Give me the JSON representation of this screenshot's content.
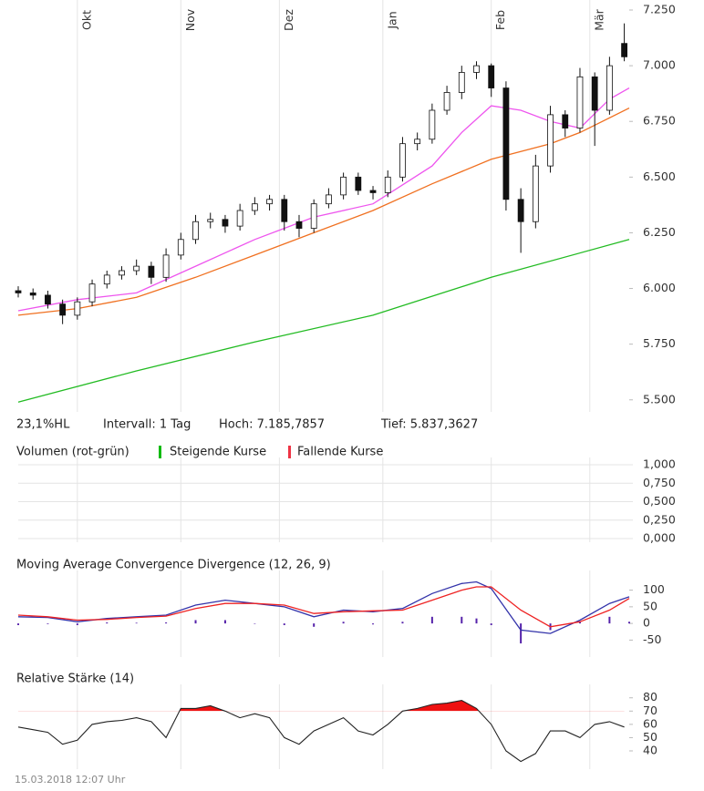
{
  "chart_data": [
    {
      "type": "candlestick",
      "x": [
        0,
        3,
        6,
        9,
        12,
        15,
        18,
        21,
        24,
        27,
        30,
        33,
        36,
        39,
        42,
        45,
        48,
        51,
        54,
        57,
        60,
        63,
        66,
        69,
        72,
        75,
        78,
        81,
        84,
        87,
        90,
        93,
        96,
        99,
        102,
        105,
        108,
        111,
        114,
        117,
        120,
        123
      ],
      "open": [
        5.99,
        5.98,
        5.97,
        5.93,
        5.88,
        5.94,
        6.02,
        6.06,
        6.08,
        6.1,
        6.05,
        6.15,
        6.22,
        6.3,
        6.31,
        6.28,
        6.35,
        6.38,
        6.4,
        6.3,
        6.27,
        6.38,
        6.42,
        6.5,
        6.44,
        6.43,
        6.5,
        6.65,
        6.67,
        6.8,
        6.88,
        6.97,
        7.0,
        6.9,
        6.4,
        6.3,
        6.55,
        6.78,
        6.72,
        6.95,
        6.8,
        7.1
      ],
      "high": [
        6.01,
        6.0,
        5.99,
        5.95,
        5.96,
        6.04,
        6.08,
        6.1,
        6.13,
        6.12,
        6.18,
        6.25,
        6.33,
        6.34,
        6.33,
        6.38,
        6.41,
        6.42,
        6.42,
        6.33,
        6.4,
        6.45,
        6.52,
        6.52,
        6.46,
        6.53,
        6.68,
        6.7,
        6.83,
        6.91,
        7.0,
        7.02,
        7.01,
        6.93,
        6.45,
        6.6,
        6.82,
        6.8,
        6.99,
        6.97,
        7.04,
        7.19
      ],
      "low": [
        5.96,
        5.95,
        5.91,
        5.84,
        5.86,
        5.92,
        6.0,
        6.04,
        6.06,
        6.02,
        6.03,
        6.13,
        6.2,
        6.27,
        6.25,
        6.26,
        6.33,
        6.35,
        6.26,
        6.23,
        6.25,
        6.36,
        6.4,
        6.42,
        6.4,
        6.41,
        6.48,
        6.62,
        6.65,
        6.78,
        6.85,
        6.94,
        6.86,
        6.35,
        6.16,
        6.27,
        6.52,
        6.68,
        6.7,
        6.64,
        6.78,
        7.02
      ],
      "close": [
        5.98,
        5.97,
        5.93,
        5.88,
        5.94,
        6.02,
        6.06,
        6.08,
        6.1,
        6.05,
        6.15,
        6.22,
        6.3,
        6.31,
        6.28,
        6.35,
        6.38,
        6.4,
        6.3,
        6.27,
        6.38,
        6.42,
        6.5,
        6.44,
        6.43,
        6.5,
        6.65,
        6.67,
        6.8,
        6.88,
        6.97,
        7.0,
        6.9,
        6.4,
        6.3,
        6.55,
        6.78,
        6.72,
        6.95,
        6.8,
        7.0,
        7.04
      ],
      "moving_averages": [
        {
          "color": "#ee55ee",
          "x": [
            0,
            12,
            24,
            36,
            48,
            60,
            72,
            84,
            90,
            96,
            102,
            108,
            114,
            120,
            124
          ],
          "values": [
            5.9,
            5.95,
            5.98,
            6.1,
            6.22,
            6.32,
            6.38,
            6.55,
            6.7,
            6.82,
            6.8,
            6.75,
            6.72,
            6.85,
            6.9
          ]
        },
        {
          "color": "#f07020",
          "x": [
            0,
            12,
            24,
            36,
            48,
            60,
            72,
            84,
            96,
            108,
            114,
            124
          ],
          "values": [
            5.88,
            5.91,
            5.96,
            6.05,
            6.15,
            6.25,
            6.35,
            6.47,
            6.58,
            6.65,
            6.7,
            6.81
          ]
        },
        {
          "color": "#22bb22",
          "x": [
            0,
            24,
            48,
            72,
            96,
            124
          ],
          "values": [
            5.49,
            5.63,
            5.76,
            5.88,
            6.05,
            6.22
          ]
        }
      ],
      "xlim": [
        0,
        124
      ],
      "xticks": [
        {
          "value": 12,
          "label": "Okt"
        },
        {
          "value": 33,
          "label": "Nov"
        },
        {
          "value": 53,
          "label": "Dez"
        },
        {
          "value": 74,
          "label": "Jan"
        },
        {
          "value": 96,
          "label": "Feb"
        },
        {
          "value": 116,
          "label": "Mär"
        }
      ],
      "ylim": [
        5.45,
        7.25
      ],
      "yticks": [
        {
          "value": 5.5,
          "label": "5.500"
        },
        {
          "value": 5.75,
          "label": "5.750"
        },
        {
          "value": 6,
          "label": "6.000"
        },
        {
          "value": 6.25,
          "label": "6.250"
        },
        {
          "value": 6.5,
          "label": "6.500"
        },
        {
          "value": 6.75,
          "label": "6.750"
        },
        {
          "value": 7,
          "label": "7.000"
        },
        {
          "value": 7.25,
          "label": "7.250"
        }
      ],
      "info": [
        "23,1%HL",
        "Intervall: 1 Tag",
        "Hoch: 7.185,7857",
        "Tief: 5.837,3627"
      ]
    },
    {
      "type": "volume",
      "title": "Volumen (rot-grün)",
      "legend": [
        {
          "name": "Steigende Kurse",
          "color": "#11bb11"
        },
        {
          "name": "Fallende Kurse",
          "color": "#ee3344"
        }
      ],
      "ylim": [
        0,
        1
      ],
      "yticks": [
        {
          "value": 0,
          "label": "0,000"
        },
        {
          "value": 0.25,
          "label": "0,250"
        },
        {
          "value": 0.5,
          "label": "0,500"
        },
        {
          "value": 0.75,
          "label": "0,750"
        },
        {
          "value": 1,
          "label": "1,000"
        }
      ],
      "grid": true
    },
    {
      "type": "macd",
      "title": "Moving Average Convergence Divergence (12, 26, 9)",
      "x": [
        0,
        6,
        12,
        18,
        24,
        30,
        36,
        42,
        48,
        54,
        60,
        66,
        72,
        78,
        84,
        90,
        93,
        96,
        102,
        108,
        114,
        120,
        124
      ],
      "series": [
        {
          "color": "#3333aa",
          "values": [
            20,
            18,
            5,
            15,
            20,
            25,
            55,
            70,
            60,
            50,
            20,
            40,
            35,
            45,
            90,
            120,
            125,
            105,
            -20,
            -30,
            10,
            60,
            80
          ]
        },
        {
          "color": "#ee2222",
          "values": [
            25,
            20,
            10,
            12,
            18,
            22,
            45,
            60,
            60,
            55,
            30,
            35,
            38,
            40,
            70,
            100,
            110,
            110,
            40,
            -10,
            5,
            40,
            75
          ]
        }
      ],
      "histogram": {
        "color": "#5522aa",
        "values": [
          -5,
          -2,
          -5,
          3,
          2,
          3,
          10,
          10,
          0,
          -5,
          -10,
          5,
          -3,
          5,
          20,
          20,
          15,
          -5,
          -60,
          -20,
          5,
          20,
          5
        ]
      },
      "ylim": [
        -90,
        140
      ],
      "yticks": [
        -50,
        0,
        50,
        100
      ]
    },
    {
      "type": "rsi",
      "title": "Relative Stärke (14)",
      "x": [
        0,
        3,
        6,
        9,
        12,
        15,
        18,
        21,
        24,
        27,
        30,
        33,
        36,
        39,
        42,
        45,
        48,
        51,
        54,
        57,
        60,
        63,
        66,
        69,
        72,
        75,
        78,
        81,
        84,
        87,
        90,
        93,
        96,
        99,
        102,
        105,
        108,
        111,
        114,
        117,
        120,
        123
      ],
      "values": [
        58,
        56,
        54,
        45,
        48,
        60,
        62,
        63,
        65,
        62,
        50,
        72,
        72,
        74,
        70,
        65,
        68,
        65,
        50,
        45,
        55,
        60,
        65,
        55,
        52,
        60,
        70,
        72,
        75,
        76,
        78,
        72,
        60,
        40,
        32,
        38,
        55,
        55,
        50,
        60,
        62,
        58
      ],
      "color": "#222222",
      "fill_color": "#ee1111",
      "threshold": 70,
      "ylim": [
        29,
        86
      ],
      "yticks": [
        40,
        50,
        60,
        70,
        80
      ]
    }
  ],
  "footer": "15.03.2018 12:07 Uhr"
}
